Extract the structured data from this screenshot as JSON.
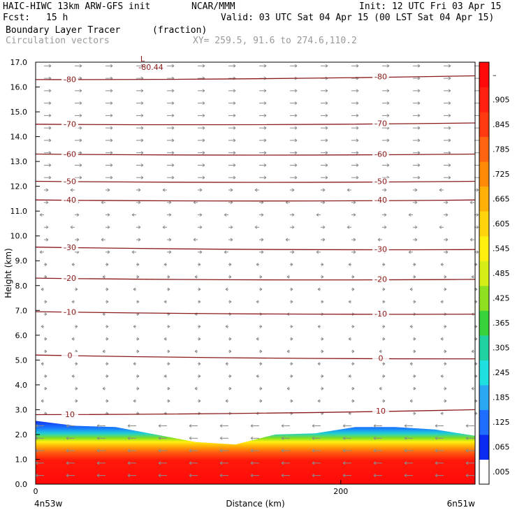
{
  "header": {
    "model": "HAIC-HIWC 13km ARW-GFS init",
    "org": "NCAR/MMM",
    "init": "Init: 12 UTC Fri 03 Apr 15",
    "fcst_label": "Fcst:",
    "fcst_value": "15 h",
    "valid": "Valid: 03 UTC Sat 04 Apr 15 (00 LST Sat 04 Apr 15)",
    "field": "Boundary Layer Tracer",
    "units": "(fraction)",
    "vectors": "Circulation vectors",
    "xy": "XY= 259.5, 91.6 to 274.6,110.2"
  },
  "chart_data": {
    "type": "contour cross-section",
    "ylabel": "Height (km)",
    "xlabel": "Distance (km)",
    "ylim": [
      0,
      17
    ],
    "xlim": [
      0,
      288
    ],
    "y_ticks": [
      "0.0",
      "1.0",
      "2.0",
      "3.0",
      "4.0",
      "5.0",
      "6.0",
      "7.0",
      "8.0",
      "9.0",
      "10.0",
      "11.0",
      "12.0",
      "13.0",
      "14.0",
      "15.0",
      "16.0",
      "17.0"
    ],
    "x_ticks": [
      {
        "value": 0,
        "label": "0"
      },
      {
        "value": 200,
        "label": "200"
      }
    ],
    "x_end_labels": {
      "left": "4n53w",
      "right": "6n51w"
    },
    "colorbar": {
      "labels": [
        ".005",
        ".065",
        ".125",
        ".185",
        ".245",
        ".305",
        ".365",
        ".425",
        ".485",
        ".545",
        ".605",
        ".665",
        ".725",
        ".785",
        ".845",
        ".905",
        "–"
      ],
      "colors": [
        "#ffffff",
        "#0a2af0",
        "#1f6eff",
        "#2aa8f2",
        "#1ee0e0",
        "#20d2a0",
        "#3ad23a",
        "#8ee020",
        "#d6ee18",
        "#fff010",
        "#ffd40a",
        "#ffb006",
        "#ff8a08",
        "#ff6410",
        "#ff3a10",
        "#ff2010",
        "#ff0a0a"
      ]
    },
    "temperature_contours": [
      {
        "level": 10,
        "label": "10",
        "y_left": 2.8,
        "y_right": 3.0
      },
      {
        "level": 0,
        "label": "0",
        "y_left": 5.2,
        "y_right": 5.05
      },
      {
        "level": -10,
        "label": "-10",
        "y_left": 6.95,
        "y_right": 6.85
      },
      {
        "level": -20,
        "label": "-20",
        "y_left": 8.3,
        "y_right": 8.25
      },
      {
        "level": -30,
        "label": "-30",
        "y_left": 9.55,
        "y_right": 9.45
      },
      {
        "level": -40,
        "label": "-40",
        "y_left": 11.45,
        "y_right": 11.45
      },
      {
        "level": -50,
        "label": "-50",
        "y_left": 12.2,
        "y_right": 12.2
      },
      {
        "level": -60,
        "label": "-60",
        "y_left": 13.3,
        "y_right": 13.3
      },
      {
        "level": -70,
        "label": "-70",
        "y_left": 14.5,
        "y_right": 14.55
      },
      {
        "level": -80,
        "label": "-80",
        "y_left": 16.3,
        "y_right": 16.45
      }
    ],
    "minimum_label": {
      "symbol": "L",
      "value": "-80.44"
    },
    "tracer_top_km": [
      2.55,
      2.35,
      2.3,
      2.0,
      1.7,
      1.6,
      2.0,
      2.05,
      2.3,
      2.3,
      2.2,
      1.95
    ]
  },
  "colors": {
    "contour": "#8b1a1a",
    "vector": "#8a8a8a",
    "axis": "#000000"
  }
}
